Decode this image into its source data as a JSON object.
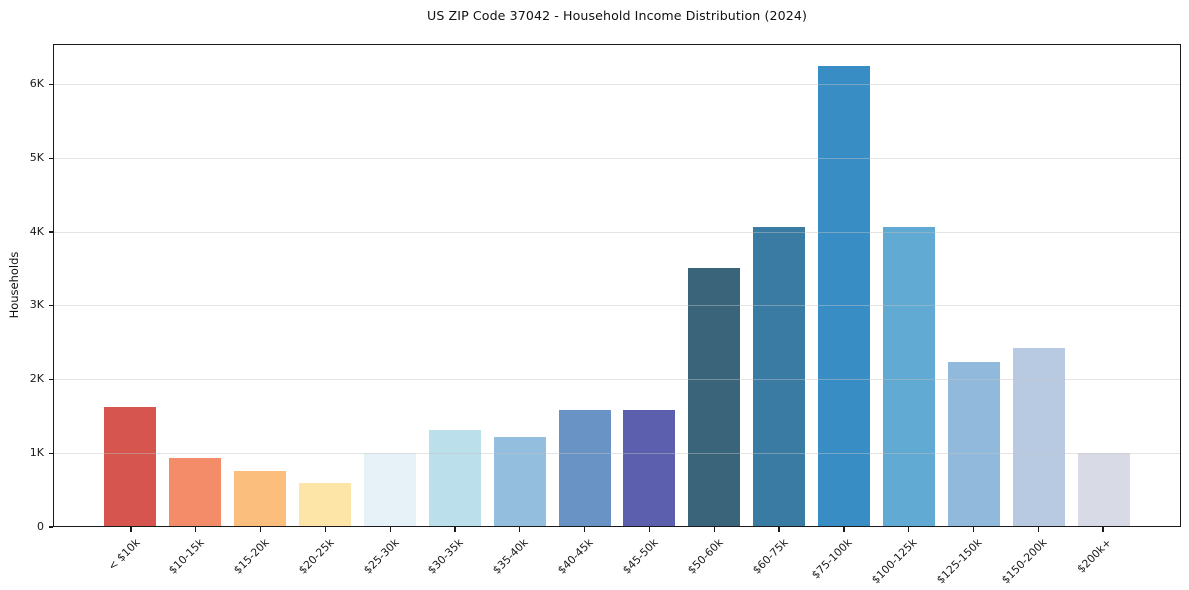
{
  "title": "US ZIP Code 37042 - Household Income Distribution (2024)",
  "chart_data": {
    "type": "bar",
    "title": "US ZIP Code 37042 - Household Income Distribution (2024)",
    "xlabel": "",
    "ylabel": "Households",
    "categories": [
      "< $10k",
      "$10-15k",
      "$15-20k",
      "$20-25k",
      "$25-30k",
      "$30-35k",
      "$35-40k",
      "$40-45k",
      "$45-50k",
      "$50-60k",
      "$60-75k",
      "$75-100k",
      "$100-125k",
      "$125-150k",
      "$150-200k",
      "$200k+"
    ],
    "values": [
      1620,
      920,
      740,
      580,
      990,
      1300,
      1210,
      1570,
      1570,
      3500,
      4050,
      6240,
      4050,
      2230,
      2420,
      990
    ],
    "bar_colors": [
      "#d6564f",
      "#f48b69",
      "#fcbe7d",
      "#fde5a7",
      "#e6f2f7",
      "#bcdfec",
      "#93bedd",
      "#6992c5",
      "#5b5fad",
      "#3a6479",
      "#3a7ba4",
      "#398dc5",
      "#60aad3",
      "#90b9db",
      "#b8cae1",
      "#d8dae6"
    ],
    "ytick_labels": [
      "0",
      "1K",
      "2K",
      "3K",
      "4K",
      "5K",
      "6K"
    ],
    "ytick_values": [
      0,
      1000,
      2000,
      3000,
      4000,
      5000,
      6000
    ],
    "ylim": [
      0,
      6550
    ],
    "grid": "horizontal",
    "legend": "none",
    "background_color": "#ffffff",
    "gridline_color": "#e6e6e6",
    "axis_color": "#1a1a1a"
  }
}
